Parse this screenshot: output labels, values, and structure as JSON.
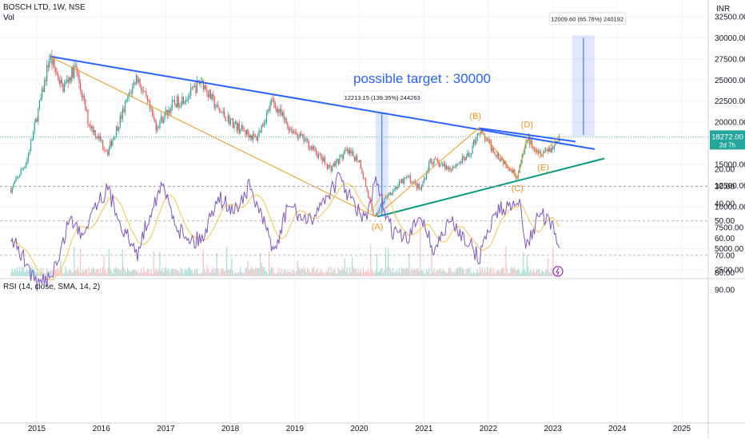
{
  "header": {
    "symbol": "BOSCH LTD, 1W, NSE",
    "volume_label": "Vol"
  },
  "currency": "INR",
  "price_label": {
    "value": "18272.00",
    "countdown": "2d 7h"
  },
  "annotations": {
    "target_text": "possible target : 30000",
    "measure_1": "12213.15 (139.35%) 244263",
    "measure_2": "12009.60 (65.78%) 240192",
    "waves": [
      "(A)",
      "(B)",
      "(C)",
      "(D)",
      "(E)"
    ]
  },
  "rsi_label": "RSI (14, close, SMA, 14, 2)",
  "colors": {
    "up": "#26a69a",
    "down": "#ef5350",
    "trend_blue": "#2962ff",
    "trend_green": "#089981",
    "wave_orange": "#f7931a",
    "target_text": "#2962ff",
    "rsi_line": "#7e57c2",
    "rsi_sma": "#f5c542",
    "rsi_band": "#ede7f6",
    "price_label_bg": "#26a69a"
  },
  "chart_data": [
    {
      "type": "candlestick",
      "title": "BOSCH LTD, 1W, NSE",
      "x_ticks": [
        "2015",
        "2016",
        "2017",
        "2018",
        "2019",
        "2020",
        "2021",
        "2022",
        "2023",
        "2024",
        "2025"
      ],
      "y_ticks": [
        "32500.00",
        "30000.00",
        "27500.00",
        "25000.00",
        "22500.00",
        "20000.00",
        "17500.00",
        "15000.00",
        "12500.00",
        "10000.00",
        "7500.00",
        "5000.00",
        "2500.00"
      ],
      "ylim": [
        1500,
        33500
      ],
      "key_points": [
        {
          "x": 2014.6,
          "y": 12000
        },
        {
          "x": 2014.85,
          "y": 15500
        },
        {
          "x": 2015.1,
          "y": 24000
        },
        {
          "x": 2015.2,
          "y": 27800
        },
        {
          "x": 2015.4,
          "y": 24000
        },
        {
          "x": 2015.6,
          "y": 26500
        },
        {
          "x": 2015.8,
          "y": 20000
        },
        {
          "x": 2016.1,
          "y": 16500
        },
        {
          "x": 2016.35,
          "y": 21500
        },
        {
          "x": 2016.55,
          "y": 25500
        },
        {
          "x": 2016.85,
          "y": 19500
        },
        {
          "x": 2017.1,
          "y": 22000
        },
        {
          "x": 2017.4,
          "y": 23500
        },
        {
          "x": 2017.55,
          "y": 25000
        },
        {
          "x": 2017.8,
          "y": 21500
        },
        {
          "x": 2018.1,
          "y": 19500
        },
        {
          "x": 2018.4,
          "y": 18000
        },
        {
          "x": 2018.65,
          "y": 22500
        },
        {
          "x": 2018.9,
          "y": 19500
        },
        {
          "x": 2019.2,
          "y": 17500
        },
        {
          "x": 2019.55,
          "y": 14500
        },
        {
          "x": 2019.8,
          "y": 16500
        },
        {
          "x": 2020.0,
          "y": 15500
        },
        {
          "x": 2020.22,
          "y": 8800
        },
        {
          "x": 2020.45,
          "y": 11500
        },
        {
          "x": 2020.75,
          "y": 13500
        },
        {
          "x": 2020.95,
          "y": 12000
        },
        {
          "x": 2021.1,
          "y": 15500
        },
        {
          "x": 2021.4,
          "y": 14500
        },
        {
          "x": 2021.7,
          "y": 16000
        },
        {
          "x": 2021.85,
          "y": 19000
        },
        {
          "x": 2022.1,
          "y": 16500
        },
        {
          "x": 2022.35,
          "y": 14500
        },
        {
          "x": 2022.45,
          "y": 13500
        },
        {
          "x": 2022.6,
          "y": 18000
        },
        {
          "x": 2022.8,
          "y": 16500
        },
        {
          "x": 2023.0,
          "y": 17000
        },
        {
          "x": 2023.1,
          "y": 18272
        }
      ]
    },
    {
      "type": "line",
      "title": "RSI (14, close, SMA, 14, 2)",
      "y_ticks": [
        "90.00",
        "80.00",
        "70.00",
        "60.00",
        "50.00",
        "40.00",
        "30.00",
        "20.00"
      ],
      "ylim": [
        14,
        94
      ],
      "bands": [
        30,
        50,
        70
      ],
      "key_points": [
        {
          "x": 2014.6,
          "y": 60
        },
        {
          "x": 2014.85,
          "y": 75
        },
        {
          "x": 2015.0,
          "y": 88
        },
        {
          "x": 2015.2,
          "y": 82
        },
        {
          "x": 2015.35,
          "y": 72
        },
        {
          "x": 2015.5,
          "y": 48
        },
        {
          "x": 2015.7,
          "y": 58
        },
        {
          "x": 2015.9,
          "y": 40
        },
        {
          "x": 2016.1,
          "y": 32
        },
        {
          "x": 2016.35,
          "y": 55
        },
        {
          "x": 2016.55,
          "y": 70
        },
        {
          "x": 2016.8,
          "y": 40
        },
        {
          "x": 2016.95,
          "y": 30
        },
        {
          "x": 2017.2,
          "y": 55
        },
        {
          "x": 2017.45,
          "y": 62
        },
        {
          "x": 2017.6,
          "y": 58
        },
        {
          "x": 2017.8,
          "y": 35
        },
        {
          "x": 2018.05,
          "y": 45
        },
        {
          "x": 2018.3,
          "y": 30
        },
        {
          "x": 2018.55,
          "y": 55
        },
        {
          "x": 2018.7,
          "y": 68
        },
        {
          "x": 2018.9,
          "y": 40
        },
        {
          "x": 2019.2,
          "y": 52
        },
        {
          "x": 2019.5,
          "y": 35
        },
        {
          "x": 2019.7,
          "y": 25
        },
        {
          "x": 2019.9,
          "y": 40
        },
        {
          "x": 2020.1,
          "y": 50
        },
        {
          "x": 2020.25,
          "y": 28
        },
        {
          "x": 2020.5,
          "y": 55
        },
        {
          "x": 2020.75,
          "y": 62
        },
        {
          "x": 2020.95,
          "y": 45
        },
        {
          "x": 2021.15,
          "y": 68
        },
        {
          "x": 2021.4,
          "y": 50
        },
        {
          "x": 2021.65,
          "y": 60
        },
        {
          "x": 2021.85,
          "y": 72
        },
        {
          "x": 2022.1,
          "y": 45
        },
        {
          "x": 2022.3,
          "y": 42
        },
        {
          "x": 2022.45,
          "y": 35
        },
        {
          "x": 2022.6,
          "y": 65
        },
        {
          "x": 2022.8,
          "y": 45
        },
        {
          "x": 2023.0,
          "y": 55
        },
        {
          "x": 2023.1,
          "y": 64
        }
      ]
    }
  ]
}
